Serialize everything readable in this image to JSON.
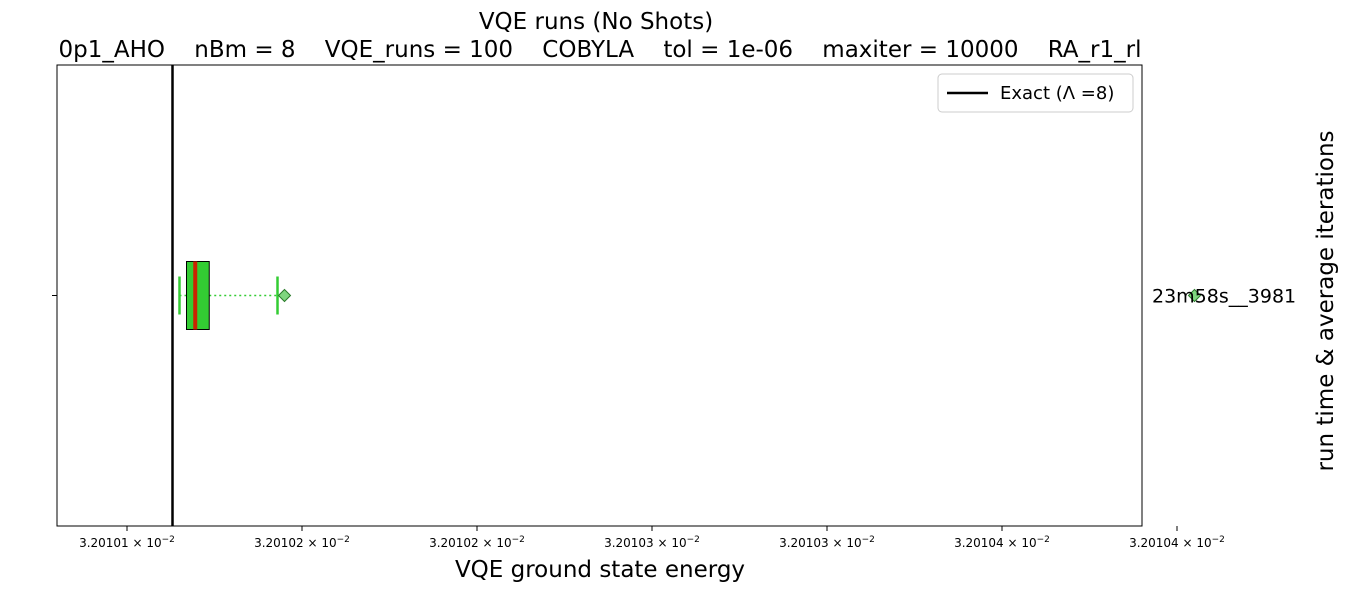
{
  "chart_data": {
    "type": "boxplot",
    "title": "VQE runs (No Shots)",
    "subtitle": "0p1_AHO    nBm = 8    VQE_runs = 100    COBYLA    tol = 1e-06    maxiter = 10000    RA_r1_rl",
    "xlabel": "VQE ground state energy",
    "ylabel": "run time & average iterations",
    "x_tick_labels": [
      "3.20101 × 10",
      "3.20102 × 10",
      "3.20102 × 10",
      "3.20103 × 10",
      "3.20103 × 10",
      "3.20104 × 10",
      "3.20104 × 10"
    ],
    "x_tick_exponent": "−2",
    "x_tick_values": [
      0.0320101,
      0.03201015,
      0.0320102,
      0.03201025,
      0.0320103,
      0.03201035,
      0.0320104
    ],
    "xlim": [
      0.03201008,
      0.03201039
    ],
    "categories": [
      "23m58s__3981"
    ],
    "series": [
      {
        "category": "23m58s__3981",
        "whisker_low": 0.032010115,
        "q1": 0.032010117,
        "median": 0.0320101195,
        "q3": 0.0320101235,
        "whisker_high": 0.032010143,
        "mean": 0.032010145,
        "outliers": [
          0.032010405
        ]
      }
    ],
    "exact_line": {
      "x": 0.032010113,
      "label": "Exact (Λ =8)"
    },
    "legend_position": "top-right",
    "grid": false,
    "colors": {
      "box_fill": "#33cc33",
      "median": "#cc2200",
      "whisker": "#33cc33",
      "mean_marker": "#7fd67f",
      "exact": "#000000"
    }
  }
}
